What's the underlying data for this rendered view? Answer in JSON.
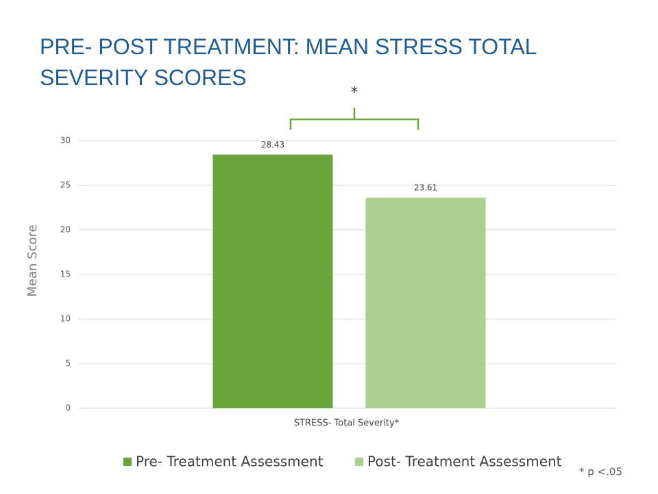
{
  "chart_data": {
    "type": "bar",
    "title": "PRE- POST TREATMENT: MEAN STRESS TOTAL SEVERITY SCORES",
    "y_label": "Mean Score",
    "categories": [
      "STRESS- Total Severity*"
    ],
    "series": [
      {
        "name": "Pre- Treatment Assessment",
        "color": "#6aa53a",
        "values": [
          28.43
        ]
      },
      {
        "name": "Post- Treatment Assessment",
        "color": "#a9d08e",
        "values": [
          23.61
        ]
      }
    ],
    "ylim": [
      0,
      30
    ],
    "yticks": [
      0,
      5,
      10,
      15,
      20,
      25,
      30
    ],
    "grid": true,
    "annotations": {
      "significance": "*",
      "footnote": "* p <.05"
    }
  }
}
